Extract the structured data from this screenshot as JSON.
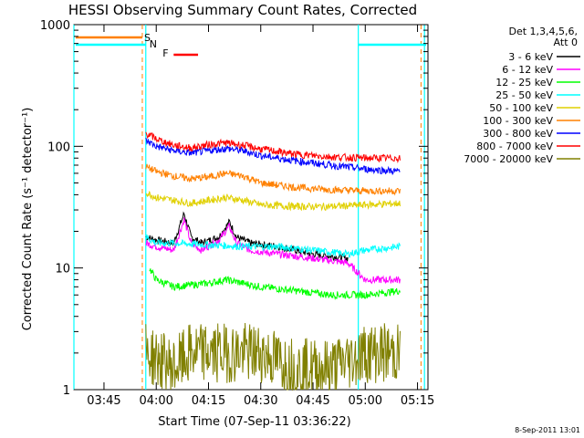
{
  "chart_data": {
    "type": "line",
    "title": "HESSI Observing Summary Count Rates, Corrected",
    "xlabel": "Start Time (07-Sep-11 03:36:22)",
    "ylabel": "Corrected Count Rate (s⁻¹ detector⁻¹)",
    "y_scale": "log",
    "ylim": [
      1,
      1000
    ],
    "xlim": [
      "03:36:22",
      "05:18:00"
    ],
    "x_ticks": [
      "03:45",
      "04:00",
      "04:15",
      "04:30",
      "04:45",
      "05:00",
      "05:15"
    ],
    "y_ticks": [
      "1",
      "10",
      "100",
      "1000"
    ],
    "grid": false,
    "legend_position": "right",
    "legend_title": [
      "Det 1,3,4,5,6,",
      "Att 0"
    ],
    "series": [
      {
        "name": "3 - 6 keV",
        "color": "#000000",
        "x": [
          "03:57",
          "04:00",
          "04:05",
          "04:08",
          "04:10",
          "04:13",
          "04:18",
          "04:21",
          "04:23",
          "04:27",
          "04:35",
          "04:45",
          "04:55"
        ],
        "values": [
          18,
          17,
          16,
          28,
          18,
          16,
          18,
          24,
          18,
          16,
          15,
          13,
          12
        ]
      },
      {
        "name": "6 - 12 keV",
        "color": "#ff00ff",
        "x": [
          "03:57",
          "04:00",
          "04:05",
          "04:08",
          "04:10",
          "04:13",
          "04:18",
          "04:21",
          "04:23",
          "04:27",
          "04:35",
          "04:45",
          "04:55",
          "05:00",
          "05:05",
          "05:10"
        ],
        "values": [
          16,
          15,
          14,
          25,
          16,
          14,
          17,
          22,
          16,
          14,
          13,
          12,
          11,
          8,
          8,
          8
        ]
      },
      {
        "name": "12 - 25 keV",
        "color": "#00ff00",
        "x": [
          "03:58",
          "04:00",
          "04:05",
          "04:15",
          "04:20",
          "04:30",
          "04:40",
          "04:50",
          "05:00",
          "05:10"
        ],
        "values": [
          10,
          8,
          7,
          7.5,
          8,
          7,
          6.5,
          6,
          6,
          6.5
        ]
      },
      {
        "name": "25 - 50 keV",
        "color": "#00ffff",
        "x": [
          "03:57",
          "04:00",
          "04:05",
          "04:15",
          "04:25",
          "04:35",
          "04:45",
          "04:55",
          "05:00",
          "05:05",
          "05:10"
        ],
        "values": [
          18,
          16,
          16,
          15.5,
          15,
          15,
          14,
          13,
          14,
          14.5,
          15
        ]
      },
      {
        "name": "50 - 100 keV",
        "color": "#e0d000",
        "x": [
          "03:57",
          "04:00",
          "04:05",
          "04:10",
          "04:15",
          "04:20",
          "04:25",
          "04:30",
          "04:40",
          "04:50",
          "05:00",
          "05:10"
        ],
        "values": [
          42,
          38,
          36,
          34,
          36,
          38,
          36,
          33,
          32,
          32,
          33,
          34
        ]
      },
      {
        "name": "100 - 300 keV",
        "color": "#ff8000",
        "x": [
          "03:57",
          "04:00",
          "04:05",
          "04:10",
          "04:15",
          "04:20",
          "04:25",
          "04:30",
          "04:40",
          "04:50",
          "05:00",
          "05:10"
        ],
        "values": [
          68,
          62,
          57,
          54,
          56,
          60,
          57,
          50,
          46,
          44,
          43,
          43
        ]
      },
      {
        "name": "300 - 800 keV",
        "color": "#0000ff",
        "x": [
          "03:57",
          "04:00",
          "04:05",
          "04:10",
          "04:15",
          "04:20",
          "04:25",
          "04:30",
          "04:40",
          "04:50",
          "05:00",
          "05:10"
        ],
        "values": [
          112,
          100,
          92,
          88,
          92,
          96,
          92,
          84,
          76,
          70,
          65,
          62
        ]
      },
      {
        "name": "800 - 7000 keV",
        "color": "#ff0000",
        "x": [
          "03:57",
          "04:00",
          "04:05",
          "04:10",
          "04:15",
          "04:20",
          "04:25",
          "04:30",
          "04:40",
          "04:50",
          "05:00",
          "05:10"
        ],
        "values": [
          128,
          115,
          102,
          97,
          103,
          107,
          102,
          95,
          86,
          82,
          80,
          80
        ]
      },
      {
        "name": "7000 - 20000 keV",
        "color": "#808000",
        "x": [
          "03:57",
          "04:05",
          "04:10",
          "04:15",
          "04:20",
          "04:25",
          "04:30",
          "04:40",
          "04:50",
          "05:00",
          "05:10"
        ],
        "values": [
          2,
          1.5,
          2,
          2,
          2,
          2,
          2,
          1.5,
          1.5,
          2,
          2
        ]
      }
    ],
    "annotations": [
      {
        "label": "S",
        "color": "#ff8000"
      },
      {
        "label": "N",
        "color": "#00ffff"
      },
      {
        "label": "F",
        "color": "#ff0000"
      }
    ],
    "footer_text": "8-Sep-2011 13:01"
  }
}
